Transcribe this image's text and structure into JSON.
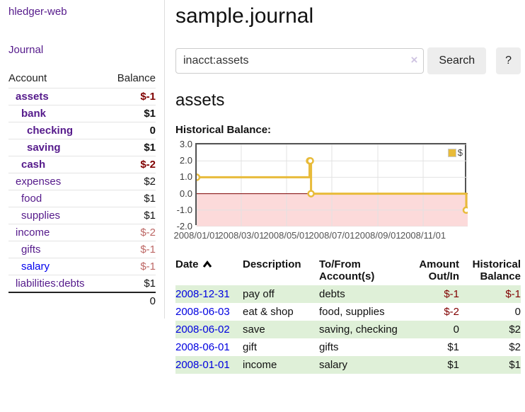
{
  "app": {
    "title": "hledger-web"
  },
  "sidebar": {
    "nav_journal": "Journal",
    "accounts_table": {
      "headers": {
        "account": "Account",
        "balance": "Balance"
      },
      "rows": [
        {
          "name": "assets",
          "indent": 0,
          "bold": true,
          "balance": "$-1",
          "balance_style": "neg-strong"
        },
        {
          "name": "bank",
          "indent": 1,
          "bold": true,
          "balance": "$1"
        },
        {
          "name": "checking",
          "indent": 2,
          "bold": true,
          "balance": "0"
        },
        {
          "name": "saving",
          "indent": 2,
          "bold": true,
          "balance": "$1"
        },
        {
          "name": "cash",
          "indent": 1,
          "bold": true,
          "balance": "$-2",
          "balance_style": "neg-strong"
        },
        {
          "name": "expenses",
          "indent": 0,
          "bold": false,
          "balance": "$2"
        },
        {
          "name": "food",
          "indent": 1,
          "bold": false,
          "balance": "$1"
        },
        {
          "name": "supplies",
          "indent": 1,
          "bold": false,
          "balance": "$1"
        },
        {
          "name": "income",
          "indent": 0,
          "bold": false,
          "balance": "$-2",
          "balance_style": "neg-muted"
        },
        {
          "name": "gifts",
          "indent": 1,
          "bold": false,
          "balance": "$-1",
          "balance_style": "neg-muted"
        },
        {
          "name": "salary",
          "indent": 1,
          "bold": false,
          "balance": "$-1",
          "balance_style": "neg-muted",
          "link_style": "unvisited"
        },
        {
          "name": "liabilities:debts",
          "indent": 0,
          "bold": false,
          "balance": "$1"
        }
      ],
      "total": "0"
    }
  },
  "header": {
    "title": "sample.journal"
  },
  "search": {
    "value": "inacct:assets",
    "clear_label": "×",
    "button_label": "Search",
    "help_label": "?"
  },
  "account_page": {
    "heading": "assets"
  },
  "chart_data": {
    "type": "line",
    "step": true,
    "title": "Historical Balance:",
    "xlim": [
      "2008-01-01",
      "2008-12-31"
    ],
    "ylim": [
      -2,
      3
    ],
    "x_ticks": [
      {
        "date": "2008-01-01",
        "label": "2008/01/01"
      },
      {
        "date": "2008-03-01",
        "label": "2008/03/01"
      },
      {
        "date": "2008-05-01",
        "label": "2008/05/01"
      },
      {
        "date": "2008-07-01",
        "label": "2008/07/01"
      },
      {
        "date": "2008-09-01",
        "label": "2008/09/01"
      },
      {
        "date": "2008-11-01",
        "label": "2008/11/01"
      }
    ],
    "y_ticks": [
      {
        "value": 3,
        "label": "3.0"
      },
      {
        "value": 2,
        "label": "2.0"
      },
      {
        "value": 1,
        "label": "1.0"
      },
      {
        "value": 0,
        "label": "0.0"
      },
      {
        "value": -1,
        "label": "-1.0"
      },
      {
        "value": -2,
        "label": "-2.0"
      }
    ],
    "series": [
      {
        "name": "$",
        "color": "#e8bb3a",
        "points": [
          [
            "2008-01-01",
            1
          ],
          [
            "2008-06-01",
            2
          ],
          [
            "2008-06-02",
            2
          ],
          [
            "2008-06-03",
            0
          ],
          [
            "2008-12-31",
            -1
          ]
        ]
      }
    ],
    "negative_region_fill": "#fcdada",
    "zero_line_color": "#800000",
    "grid_color": "#e2e2e2",
    "legend": {
      "label": "$",
      "position": "top-right"
    }
  },
  "register": {
    "columns": [
      {
        "label": "Date",
        "sort": "ascending"
      },
      {
        "label": "Description"
      },
      {
        "label": "To/From Account(s)"
      },
      {
        "label": "Amount Out/In",
        "align": "right"
      },
      {
        "label": "Historical Balance",
        "align": "right"
      }
    ],
    "rows": [
      {
        "date": "2008-12-31",
        "description": "pay off",
        "accounts": "debts",
        "amount": "$-1",
        "amount_negative": true,
        "balance": "$-1",
        "balance_negative": true
      },
      {
        "date": "2008-06-03",
        "description": "eat & shop",
        "accounts": "food, supplies",
        "amount": "$-2",
        "amount_negative": true,
        "balance": "0",
        "balance_negative": false
      },
      {
        "date": "2008-06-02",
        "description": "save",
        "accounts": "saving, checking",
        "amount": "0",
        "amount_negative": false,
        "balance": "$2",
        "balance_negative": false
      },
      {
        "date": "2008-06-01",
        "description": "gift",
        "accounts": "gifts",
        "amount": "$1",
        "amount_negative": false,
        "balance": "$2",
        "balance_negative": false
      },
      {
        "date": "2008-01-01",
        "description": "income",
        "accounts": "salary",
        "amount": "$1",
        "amount_negative": false,
        "balance": "$1",
        "balance_negative": false
      }
    ]
  },
  "colors": {
    "link_purple": "#551a8b",
    "link_blue": "#0000ee",
    "negative_strong": "#800000",
    "negative_muted": "#bd6765",
    "row_stripe_green": "#dff0d8",
    "series_gold": "#e8bb3a"
  }
}
